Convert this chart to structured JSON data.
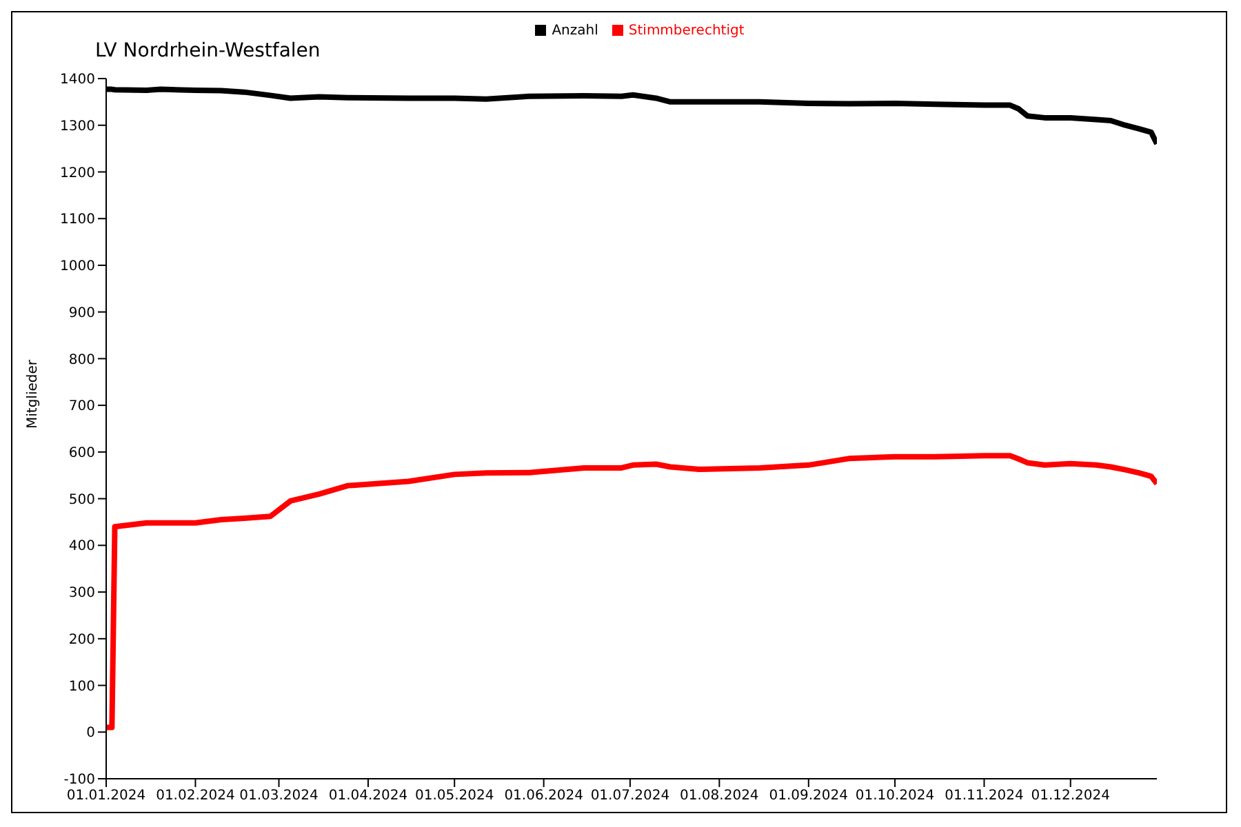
{
  "chart_data": {
    "type": "line",
    "title": "LV Nordrhein-Westfalen",
    "ylabel": "Mitglieder",
    "legend": "top",
    "marker": "none",
    "line_style": "solid",
    "x": [
      "2024-01-01",
      "2024-01-03",
      "2024-01-04",
      "2024-01-15",
      "2024-01-20",
      "2024-02-01",
      "2024-02-10",
      "2024-02-18",
      "2024-02-27",
      "2024-03-05",
      "2024-03-15",
      "2024-03-25",
      "2024-04-15",
      "2024-05-01",
      "2024-05-12",
      "2024-05-27",
      "2024-06-15",
      "2024-06-28",
      "2024-07-02",
      "2024-07-10",
      "2024-07-15",
      "2024-07-25",
      "2024-08-15",
      "2024-09-01",
      "2024-09-15",
      "2024-10-01",
      "2024-10-15",
      "2024-11-01",
      "2024-11-10",
      "2024-11-13",
      "2024-11-16",
      "2024-11-22",
      "2024-12-01",
      "2024-12-10",
      "2024-12-15",
      "2024-12-20",
      "2024-12-25",
      "2024-12-29",
      "2024-12-31"
    ],
    "ylim": [
      -100,
      1400
    ],
    "yticks": [
      -100,
      0,
      100,
      200,
      300,
      400,
      500,
      600,
      700,
      800,
      900,
      1000,
      1100,
      1200,
      1300,
      1400
    ],
    "xlim": [
      "2024-01-01",
      "2024-12-31"
    ],
    "xticks": [
      {
        "value": "2024-01-01",
        "label": "01.01.2024"
      },
      {
        "value": "2024-02-01",
        "label": "01.02.2024"
      },
      {
        "value": "2024-03-01",
        "label": "01.03.2024"
      },
      {
        "value": "2024-04-01",
        "label": "01.04.2024"
      },
      {
        "value": "2024-05-01",
        "label": "01.05.2024"
      },
      {
        "value": "2024-06-01",
        "label": "01.06.2024"
      },
      {
        "value": "2024-07-01",
        "label": "01.07.2024"
      },
      {
        "value": "2024-08-01",
        "label": "01.08.2024"
      },
      {
        "value": "2024-09-01",
        "label": "01.09.2024"
      },
      {
        "value": "2024-10-01",
        "label": "01.10.2024"
      },
      {
        "value": "2024-11-01",
        "label": "01.11.2024"
      },
      {
        "value": "2024-12-01",
        "label": "01.12.2024"
      }
    ],
    "series": [
      {
        "name": "Anzahl",
        "color": "#000000",
        "values": [
          1377,
          1377,
          1376,
          1375,
          1377,
          1375,
          1374,
          1371,
          1364,
          1358,
          1361,
          1359,
          1358,
          1358,
          1356,
          1362,
          1363,
          1362,
          1365,
          1358,
          1350,
          1350,
          1350,
          1347,
          1346,
          1347,
          1345,
          1343,
          1343,
          1335,
          1320,
          1316,
          1316,
          1312,
          1310,
          1300,
          1292,
          1285,
          1260
        ]
      },
      {
        "name": "Stimmberechtigt",
        "color": "#ff0000",
        "values": [
          10,
          10,
          440,
          448,
          448,
          448,
          455,
          458,
          462,
          495,
          510,
          528,
          537,
          552,
          555,
          556,
          566,
          566,
          572,
          574,
          568,
          563,
          566,
          572,
          586,
          590,
          590,
          592,
          592,
          585,
          577,
          572,
          575,
          572,
          568,
          562,
          555,
          548,
          532
        ]
      }
    ]
  }
}
